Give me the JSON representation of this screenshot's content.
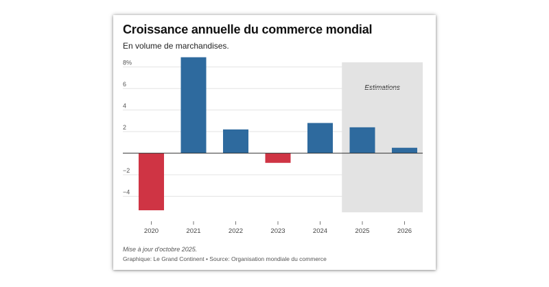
{
  "chart_data": {
    "type": "bar",
    "title": "Croissance annuelle du commerce mondial",
    "subtitle": "En volume de marchandises.",
    "categories": [
      "2020",
      "2021",
      "2022",
      "2023",
      "2024",
      "2025",
      "2026"
    ],
    "values": [
      -5.3,
      8.9,
      2.2,
      -0.9,
      2.8,
      2.4,
      0.5
    ],
    "ylim": [
      -6,
      9
    ],
    "yticks": [
      {
        "value": 8,
        "label": "8%"
      },
      {
        "value": 6,
        "label": "6"
      },
      {
        "value": 4,
        "label": "4"
      },
      {
        "value": 2,
        "label": "2"
      },
      {
        "value": 0,
        "label": ""
      },
      {
        "value": -2,
        "label": "−2"
      },
      {
        "value": -4,
        "label": "−4"
      }
    ],
    "grid": true,
    "xlabel": "",
    "ylabel": "",
    "estimation_region": {
      "from": "2025",
      "to": "2026",
      "label": "Estimations"
    },
    "colors": {
      "positive": "#2e6a9e",
      "negative": "#cf3444",
      "estimation_bg": "#e3e3e3",
      "grid": "#e3e3e3",
      "baseline": "#333333"
    }
  },
  "footer": {
    "note": "Mise à jour d'octobre 2025.",
    "source": "Graphique: Le Grand Continent • Source: Organisation mondiale du commerce"
  }
}
